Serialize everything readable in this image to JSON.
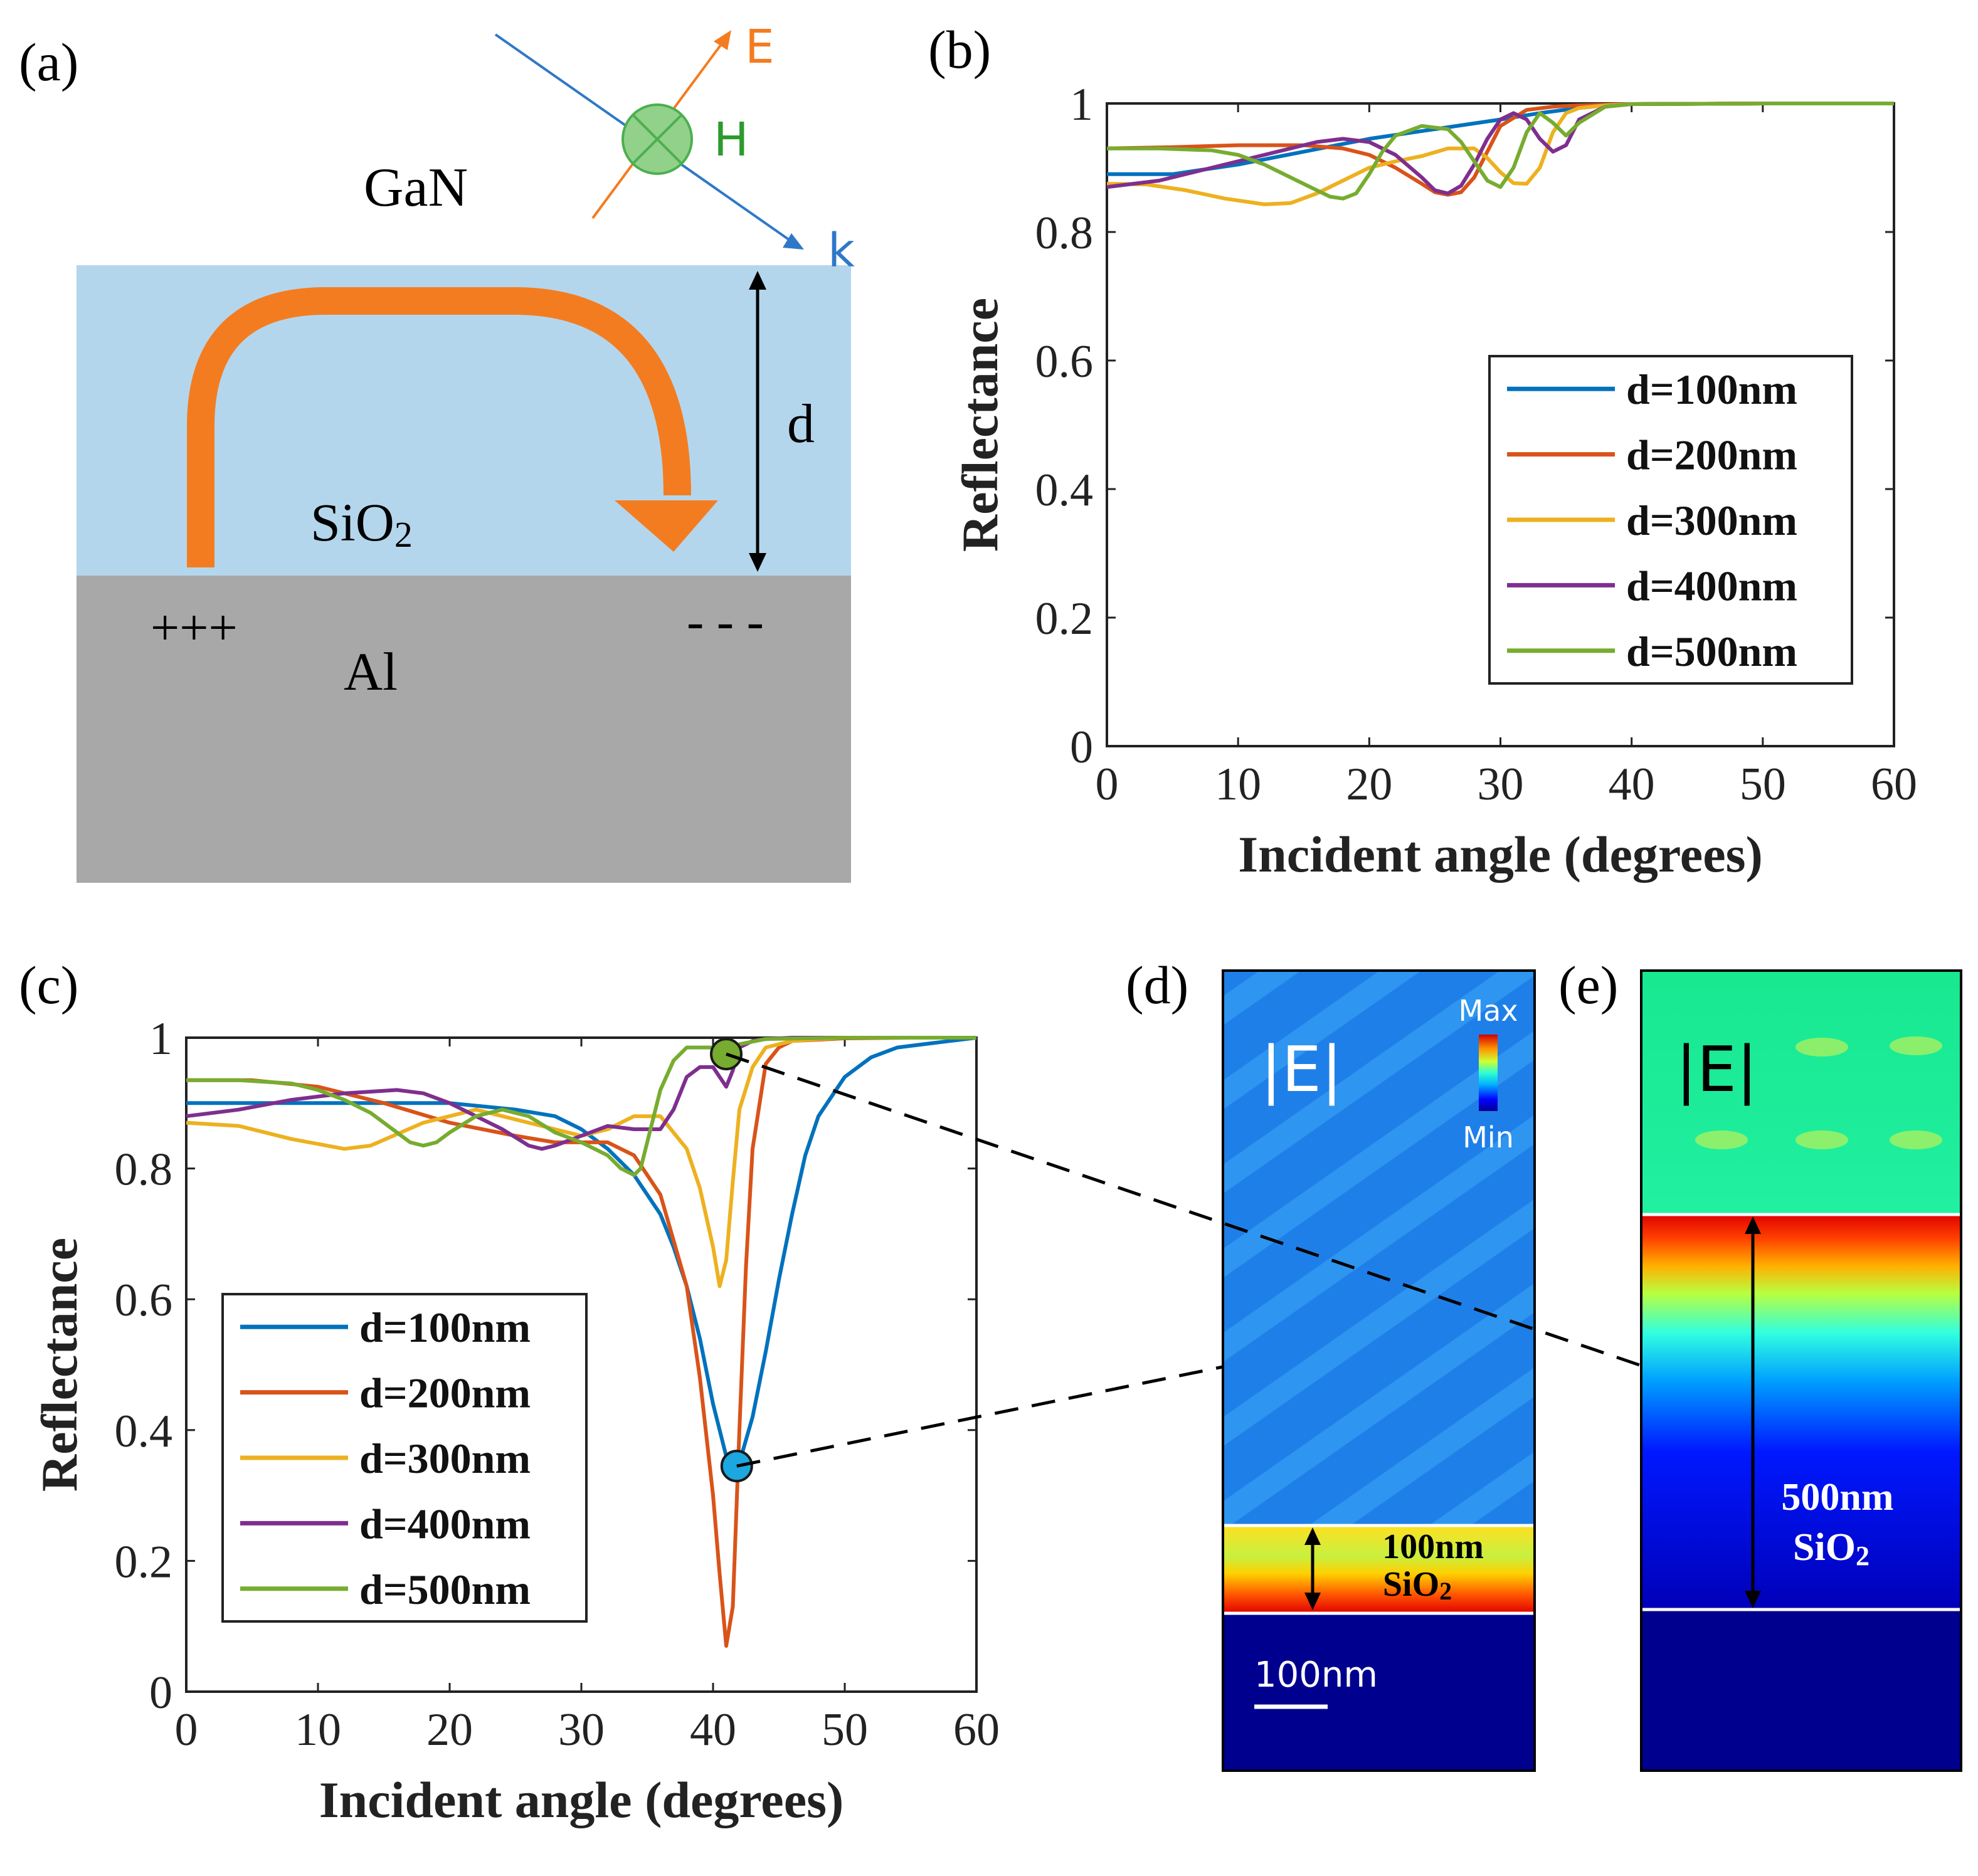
{
  "panel_labels": {
    "a": "(a)",
    "b": "(b)",
    "c": "(c)",
    "d": "(d)",
    "e": "(e)"
  },
  "colors": {
    "d100": "#0072BD",
    "d200": "#D95319",
    "d300": "#EDB120",
    "d400": "#7E2F8E",
    "d500": "#77AC30",
    "sio2": "#b4d6ec",
    "al": "#a8a8a8",
    "arrow": "#f47c20",
    "vectorE": "#f47c20",
    "vectorH": "#2e9a2e",
    "vectorK": "#2f78c8"
  },
  "schematic": {
    "top_medium": "GaN",
    "layer": "SiO",
    "layer_sub": "2",
    "substrate": "Al",
    "charges_positive": "+++",
    "charges_negative": "- - -",
    "thickness_label": "d",
    "E_label": "E",
    "H_label": "H",
    "k_label": "k"
  },
  "chart_data": [
    {
      "id": "b",
      "type": "line",
      "xlabel": "Incident angle (degrees)",
      "ylabel": "Reflectance",
      "xlim": [
        0,
        60
      ],
      "ylim": [
        0,
        1
      ],
      "xticks": [
        0,
        10,
        20,
        30,
        40,
        50,
        60
      ],
      "yticks": [
        0,
        0.2,
        0.4,
        0.6,
        0.8,
        1
      ],
      "ytick_labels": [
        "0",
        "0.2",
        "0.4",
        "0.6",
        "0.8",
        "1"
      ],
      "legend_position": "right",
      "series": [
        {
          "name": "d=100nm",
          "color": "#0072BD",
          "x": [
            0,
            5,
            10,
            15,
            20,
            25,
            30,
            33,
            36,
            38,
            40,
            50,
            60
          ],
          "y": [
            0.89,
            0.89,
            0.905,
            0.925,
            0.945,
            0.96,
            0.975,
            0.985,
            0.993,
            0.997,
            0.999,
            1,
            1
          ]
        },
        {
          "name": "d=200nm",
          "color": "#D95319",
          "x": [
            0,
            5,
            10,
            15,
            18,
            20,
            22,
            24,
            25,
            26,
            27,
            28,
            29,
            30,
            32,
            34,
            36,
            38,
            40,
            50,
            60
          ],
          "y": [
            0.93,
            0.932,
            0.935,
            0.935,
            0.93,
            0.92,
            0.9,
            0.875,
            0.862,
            0.858,
            0.862,
            0.885,
            0.925,
            0.965,
            0.99,
            0.995,
            0.997,
            0.998,
            0.999,
            1,
            1
          ]
        },
        {
          "name": "d=300nm",
          "color": "#EDB120",
          "x": [
            0,
            3,
            6,
            9,
            12,
            14,
            16,
            18,
            20,
            22,
            24,
            26,
            28,
            29,
            30,
            31,
            32,
            33,
            34,
            35,
            36,
            38,
            40,
            50,
            60
          ],
          "y": [
            0.875,
            0.874,
            0.865,
            0.852,
            0.843,
            0.845,
            0.86,
            0.88,
            0.9,
            0.91,
            0.918,
            0.93,
            0.93,
            0.915,
            0.893,
            0.876,
            0.875,
            0.9,
            0.955,
            0.985,
            0.993,
            0.997,
            0.999,
            1,
            1
          ]
        },
        {
          "name": "d=400nm",
          "color": "#7E2F8E",
          "x": [
            0,
            4,
            8,
            12,
            16,
            18,
            20,
            22,
            24,
            25,
            26,
            27,
            28,
            29,
            30,
            31,
            32,
            33,
            34,
            35,
            36,
            38,
            40,
            50,
            60
          ],
          "y": [
            0.87,
            0.88,
            0.9,
            0.92,
            0.94,
            0.945,
            0.94,
            0.92,
            0.885,
            0.865,
            0.86,
            0.872,
            0.905,
            0.945,
            0.975,
            0.985,
            0.975,
            0.945,
            0.925,
            0.935,
            0.975,
            0.995,
            0.999,
            1,
            1
          ]
        },
        {
          "name": "d=500nm",
          "color": "#77AC30",
          "x": [
            0,
            4,
            8,
            10,
            12,
            14,
            16,
            17,
            18,
            19,
            20,
            21,
            22,
            24,
            26,
            27,
            28,
            29,
            30,
            31,
            32,
            33,
            34,
            35,
            36,
            38,
            40,
            50,
            60
          ],
          "y": [
            0.93,
            0.93,
            0.927,
            0.92,
            0.905,
            0.885,
            0.865,
            0.855,
            0.852,
            0.86,
            0.89,
            0.925,
            0.95,
            0.965,
            0.96,
            0.94,
            0.91,
            0.88,
            0.87,
            0.9,
            0.955,
            0.985,
            0.97,
            0.95,
            0.97,
            0.995,
            0.999,
            1,
            1
          ]
        }
      ]
    },
    {
      "id": "c",
      "type": "line",
      "xlabel": "Incident angle (degrees)",
      "ylabel": "Reflectance",
      "xlim": [
        0,
        60
      ],
      "ylim": [
        0,
        1
      ],
      "xticks": [
        0,
        10,
        20,
        30,
        40,
        50,
        60
      ],
      "yticks": [
        0,
        0.2,
        0.4,
        0.6,
        0.8,
        1
      ],
      "ytick_labels": [
        "0",
        "0.2",
        "0.4",
        "0.6",
        "0.8",
        "1"
      ],
      "legend_position": "lower-left",
      "series": [
        {
          "name": "d=100nm",
          "color": "#0072BD",
          "x": [
            0,
            5,
            10,
            15,
            20,
            25,
            28,
            30,
            32,
            34,
            36,
            37,
            38,
            39,
            40,
            41,
            41.5,
            42,
            43,
            44,
            45,
            46,
            47,
            48,
            50,
            52,
            54,
            56,
            58,
            60
          ],
          "y": [
            0.9,
            0.9,
            0.9,
            0.9,
            0.9,
            0.89,
            0.88,
            0.86,
            0.83,
            0.79,
            0.73,
            0.68,
            0.62,
            0.54,
            0.44,
            0.36,
            0.34,
            0.35,
            0.42,
            0.52,
            0.63,
            0.73,
            0.82,
            0.88,
            0.94,
            0.97,
            0.985,
            0.99,
            0.995,
            1
          ]
        },
        {
          "name": "d=200nm",
          "color": "#D95319",
          "x": [
            0,
            5,
            10,
            15,
            20,
            25,
            28,
            30,
            32,
            34,
            36,
            38,
            39,
            40,
            40.5,
            41,
            41.5,
            42,
            42.5,
            43,
            44,
            45,
            46,
            48,
            50,
            55,
            60
          ],
          "y": [
            0.935,
            0.935,
            0.925,
            0.9,
            0.87,
            0.85,
            0.84,
            0.84,
            0.84,
            0.82,
            0.76,
            0.62,
            0.48,
            0.3,
            0.18,
            0.07,
            0.13,
            0.4,
            0.65,
            0.83,
            0.96,
            0.985,
            0.995,
            0.997,
            0.999,
            1,
            1
          ]
        },
        {
          "name": "d=300nm",
          "color": "#EDB120",
          "x": [
            0,
            4,
            8,
            12,
            14,
            18,
            22,
            26,
            30,
            32,
            34,
            36,
            38,
            39,
            40,
            40.5,
            41,
            41.5,
            42,
            43,
            44,
            46,
            48,
            50,
            60
          ],
          "y": [
            0.87,
            0.865,
            0.845,
            0.83,
            0.835,
            0.87,
            0.89,
            0.87,
            0.85,
            0.86,
            0.88,
            0.88,
            0.83,
            0.77,
            0.68,
            0.62,
            0.66,
            0.78,
            0.89,
            0.955,
            0.985,
            0.995,
            0.998,
            1,
            1
          ]
        },
        {
          "name": "d=400nm",
          "color": "#7E2F8E",
          "x": [
            0,
            4,
            8,
            12,
            16,
            18,
            20,
            22,
            24,
            26,
            27,
            28,
            30,
            32,
            34,
            36,
            37,
            38,
            39,
            40,
            40.5,
            41,
            41.5,
            42,
            43,
            44,
            46,
            50,
            60
          ],
          "y": [
            0.88,
            0.89,
            0.905,
            0.915,
            0.92,
            0.915,
            0.9,
            0.88,
            0.86,
            0.835,
            0.83,
            0.835,
            0.85,
            0.865,
            0.86,
            0.86,
            0.89,
            0.94,
            0.955,
            0.955,
            0.94,
            0.925,
            0.95,
            0.985,
            0.995,
            0.998,
            1,
            1,
            1
          ]
        },
        {
          "name": "d=500nm",
          "color": "#77AC30",
          "x": [
            0,
            4,
            8,
            10,
            12,
            14,
            16,
            17,
            18,
            19,
            20,
            22,
            24,
            26,
            28,
            30,
            32,
            33,
            34,
            34.5,
            35,
            36,
            37,
            38,
            40,
            41,
            42,
            44,
            50,
            60
          ],
          "y": [
            0.935,
            0.935,
            0.93,
            0.92,
            0.905,
            0.885,
            0.855,
            0.84,
            0.835,
            0.84,
            0.855,
            0.88,
            0.89,
            0.88,
            0.855,
            0.84,
            0.82,
            0.8,
            0.79,
            0.8,
            0.84,
            0.92,
            0.965,
            0.985,
            0.985,
            0.975,
            0.99,
            0.998,
            1,
            1
          ]
        }
      ],
      "markers": [
        {
          "series": "d=500nm",
          "x": 41,
          "y": 0.975,
          "color": "#77AC30"
        },
        {
          "series": "d=100nm",
          "x": 41.8,
          "y": 0.345,
          "color": "#1ca7e0"
        }
      ]
    }
  ],
  "field_maps": {
    "d": {
      "title": "|E|",
      "colorbar_max": "Max",
      "colorbar_min": "Min",
      "layer_thickness": "100nm",
      "layer_material": "SiO",
      "layer_sub": "2",
      "scale_bar": "100nm"
    },
    "e": {
      "title": "|E|",
      "layer_thickness": "500nm",
      "layer_material": "SiO",
      "layer_sub": "2"
    }
  }
}
